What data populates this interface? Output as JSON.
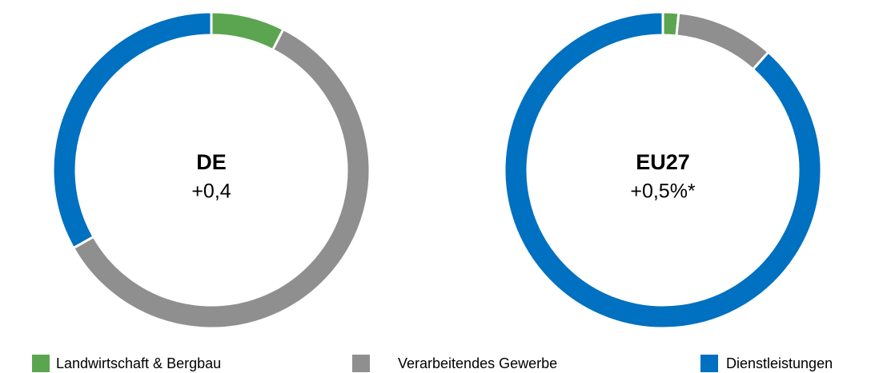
{
  "chart_data": [
    {
      "type": "donut",
      "title": "DE",
      "subtitle": "+0,4",
      "categories": [
        "Landwirtschaft & Bergbau",
        "Verarbeitendes Gewerbe",
        "Dienstleistungen"
      ],
      "values": [
        7.5,
        59.3,
        33.2
      ],
      "colors": [
        "#5ba550",
        "#8f8f8f",
        "#0070c0"
      ]
    },
    {
      "type": "donut",
      "title": "EU27",
      "subtitle": "+0,5%*",
      "categories": [
        "Landwirtschaft & Bergbau",
        "Verarbeitendes Gewerbe",
        "Dienstleistungen"
      ],
      "values": [
        1.6,
        10,
        88.4
      ],
      "colors": [
        "#5ba550",
        "#8f8f8f",
        "#0070c0"
      ]
    }
  ]
}
